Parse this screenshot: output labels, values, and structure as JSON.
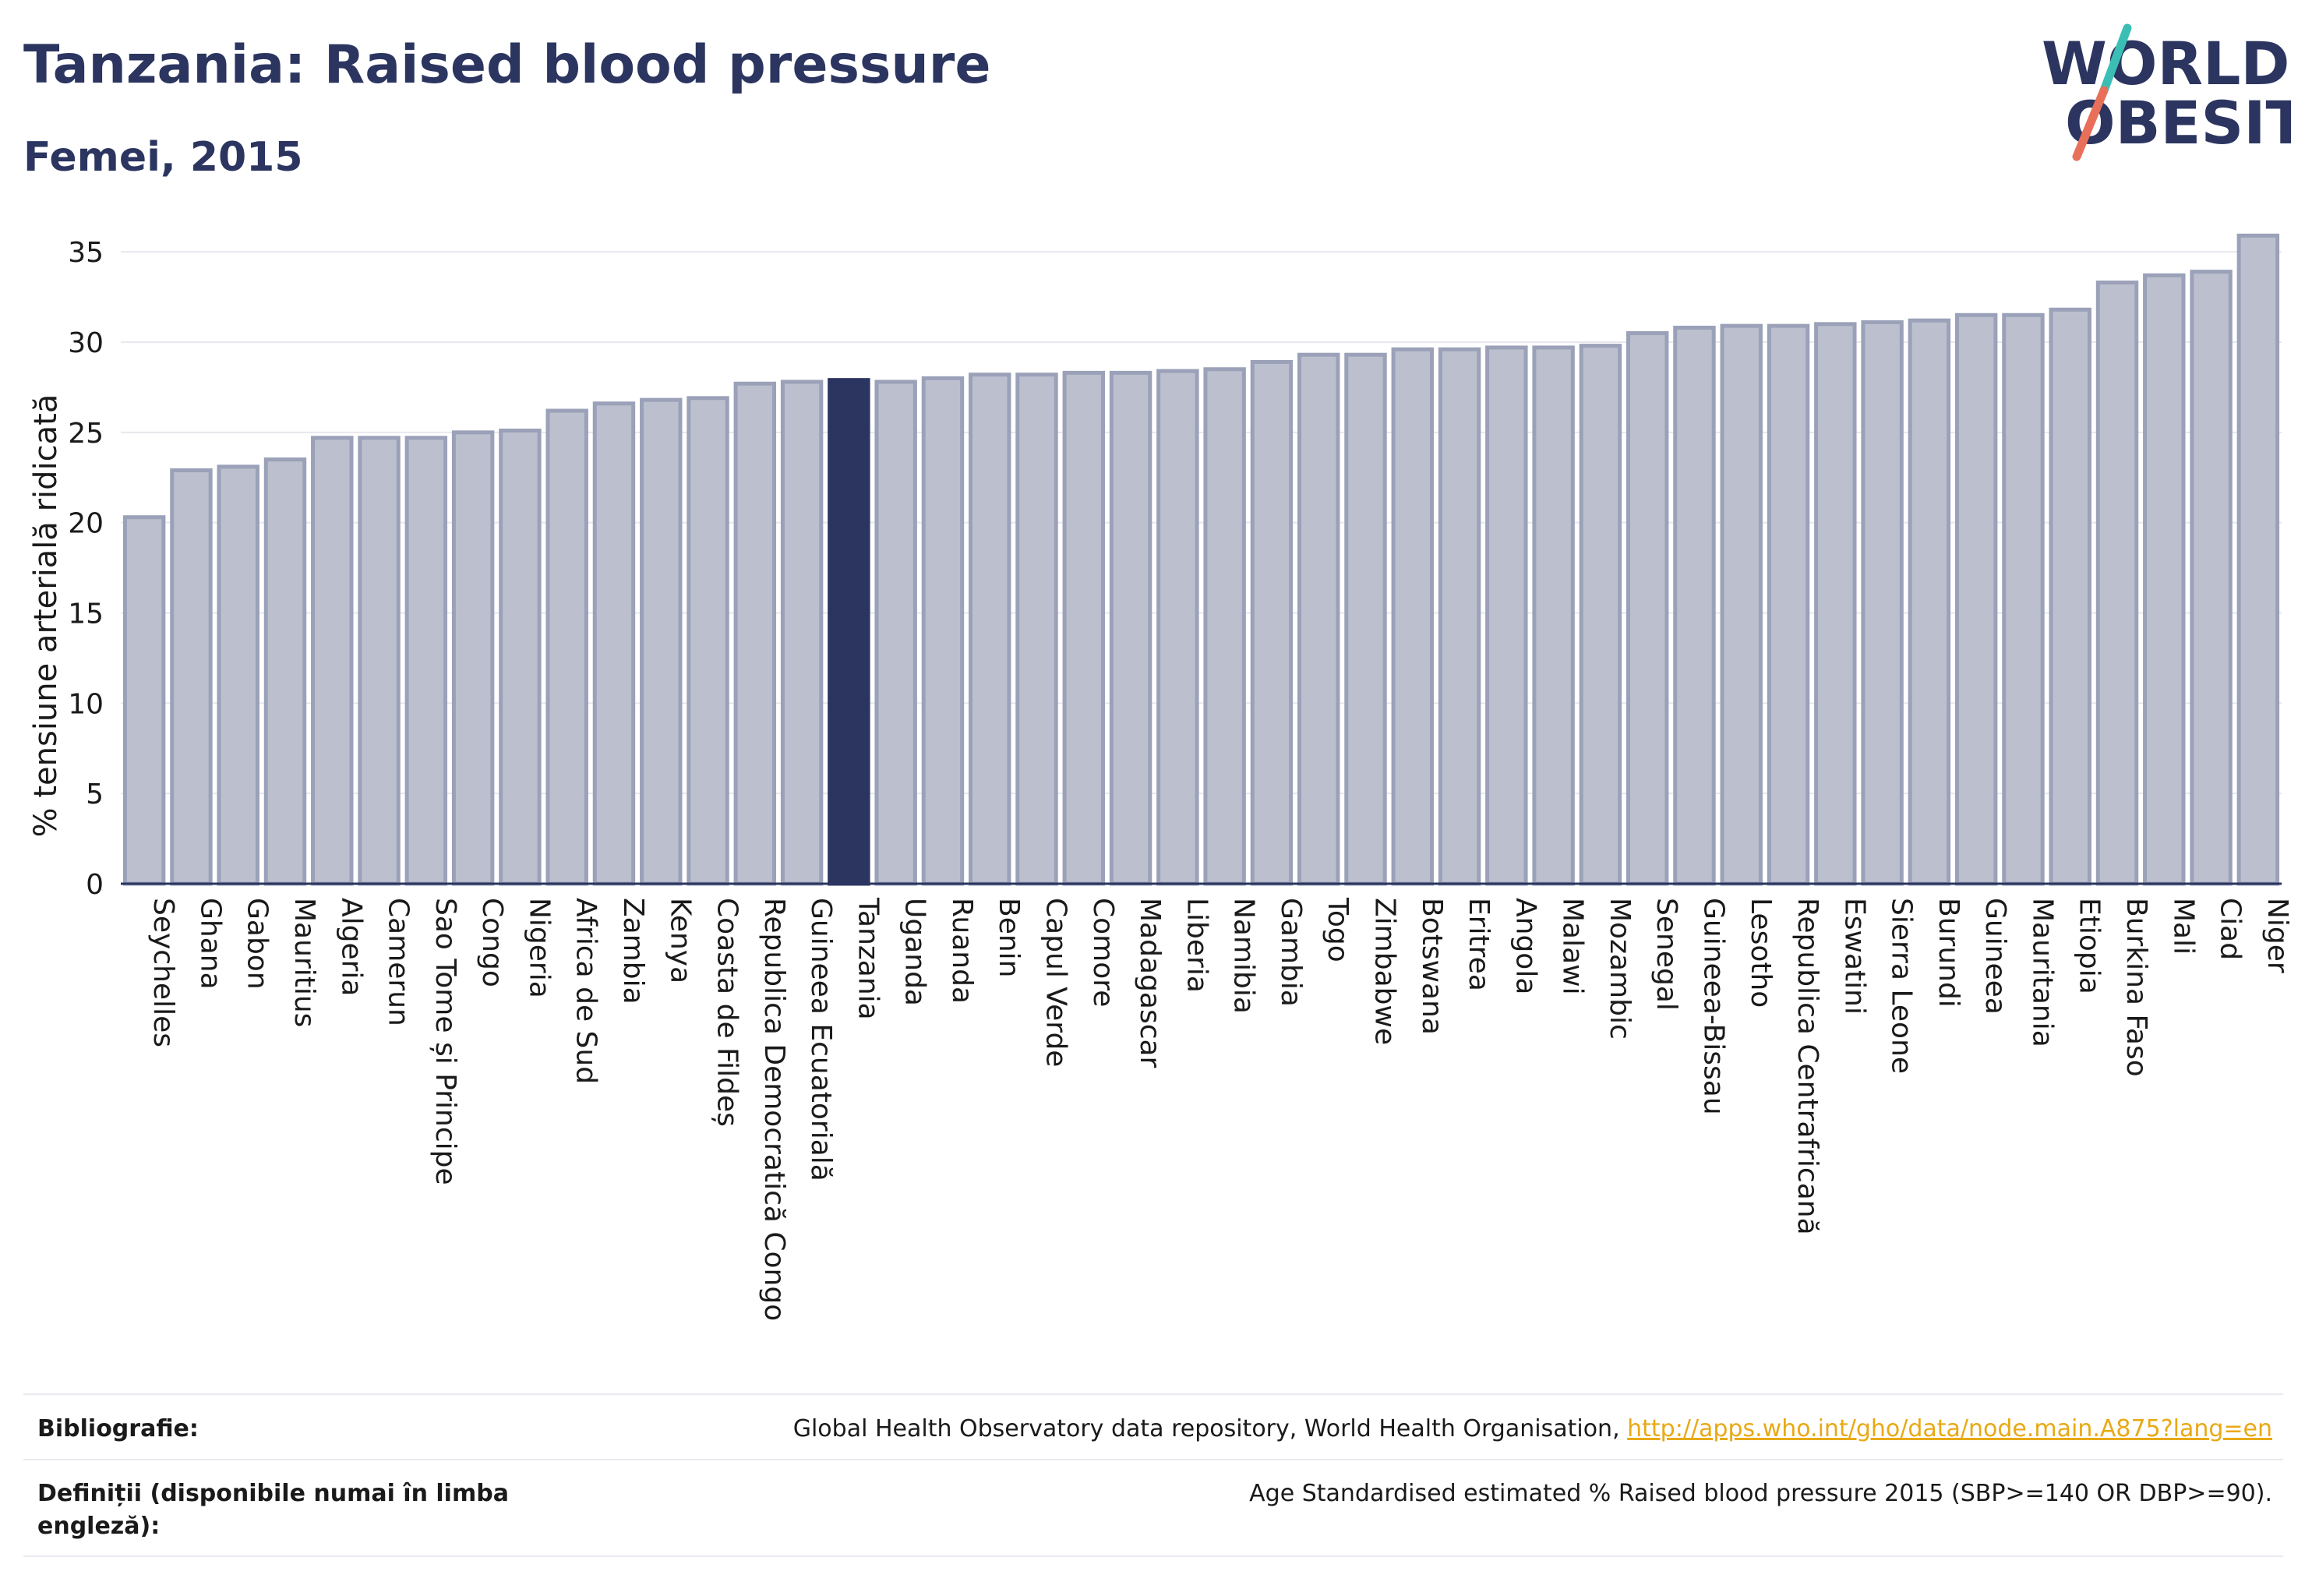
{
  "header": {
    "title": "Tanzania: Raised blood pressure",
    "subtitle": "Femei, 2015"
  },
  "logo": {
    "line1": "WORLD",
    "line2": "OBESITY"
  },
  "colors": {
    "bar": "#bcc0ce",
    "bar_stroke": "#9aa1b8",
    "highlight": "#2b3560",
    "title": "#2b3560",
    "link": "#e8a915",
    "logo_slash_top": "#3bbfb5",
    "logo_slash_bottom": "#e8705a"
  },
  "chart_data": {
    "type": "bar",
    "ylabel": "% tensiune arterială ridicată",
    "ylim": [
      0,
      36
    ],
    "yticks": [
      0,
      5,
      10,
      15,
      20,
      25,
      30,
      35
    ],
    "grid": true,
    "highlight": "Tanzania",
    "categories": [
      "Seychelles",
      "Ghana",
      "Gabon",
      "Mauritius",
      "Algeria",
      "Camerun",
      "Sao Tome și Principe",
      "Congo",
      "Nigeria",
      "Africa de Sud",
      "Zambia",
      "Kenya",
      "Coasta de Fildeș",
      "Republica Democratică Congo",
      "Guineea Ecuatorială",
      "Tanzania",
      "Uganda",
      "Ruanda",
      "Benin",
      "Capul Verde",
      "Comore",
      "Madagascar",
      "Liberia",
      "Namibia",
      "Gambia",
      "Togo",
      "Zimbabwe",
      "Botswana",
      "Eritrea",
      "Angola",
      "Malawi",
      "Mozambic",
      "Senegal",
      "Guineea-Bissau",
      "Lesotho",
      "Republica Centrafricană",
      "Eswatini",
      "Sierra Leone",
      "Burundi",
      "Guineea",
      "Mauritania",
      "Etiopia",
      "Burkina Faso",
      "Mali",
      "Ciad",
      "Niger"
    ],
    "values": [
      20.3,
      22.9,
      23.1,
      23.5,
      24.7,
      24.7,
      24.7,
      25.0,
      25.1,
      26.2,
      26.6,
      26.8,
      26.9,
      27.7,
      27.8,
      27.9,
      27.8,
      28.0,
      28.2,
      28.2,
      28.3,
      28.3,
      28.4,
      28.5,
      28.9,
      29.3,
      29.3,
      29.6,
      29.6,
      29.7,
      29.7,
      29.8,
      30.5,
      30.8,
      30.9,
      30.9,
      31.0,
      31.1,
      31.2,
      31.5,
      31.5,
      31.8,
      33.3,
      33.7,
      33.9,
      35.9
    ]
  },
  "footer": {
    "bib_label": "Bibliografie:",
    "bib_text": "Global Health Observatory data repository, World Health Organisation, ",
    "bib_link": "http://apps.who.int/gho/data/node.main.A875?lang=en",
    "def_label": "Definiții (disponibile numai în limba engleză):",
    "def_text": "Age Standardised estimated % Raised blood pressure 2015 (SBP>=140 OR DBP>=90)."
  }
}
